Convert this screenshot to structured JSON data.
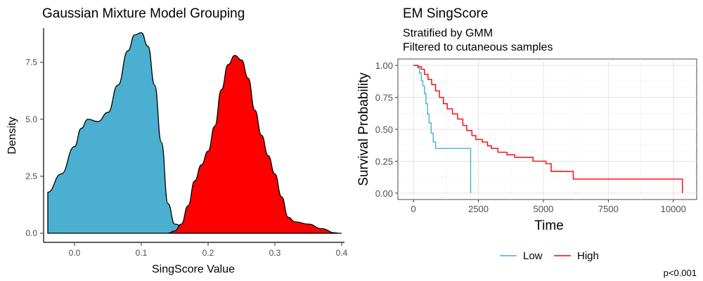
{
  "chart_data": [
    {
      "type": "area",
      "title": "Gaussian Mixture Model Grouping",
      "xlabel": "SingScore Value",
      "ylabel": "Density",
      "xlim": [
        -0.04,
        0.4
      ],
      "ylim": [
        0,
        9
      ],
      "x_ticks": [
        "0.0",
        "0.1",
        "0.2",
        "0.3",
        "0.4"
      ],
      "y_ticks": [
        "0.0",
        "2.5",
        "5.0",
        "7.5"
      ],
      "grid": false,
      "legend": "none",
      "series": [
        {
          "color": "#4BAFD1",
          "points": [
            [
              -0.04,
              1.8
            ],
            [
              -0.02,
              2.6
            ],
            [
              0.0,
              3.8
            ],
            [
              0.01,
              4.6
            ],
            [
              0.02,
              5.0
            ],
            [
              0.035,
              4.9
            ],
            [
              0.05,
              5.3
            ],
            [
              0.065,
              6.5
            ],
            [
              0.08,
              8.0
            ],
            [
              0.09,
              8.7
            ],
            [
              0.1,
              8.8
            ],
            [
              0.11,
              8.2
            ],
            [
              0.12,
              6.5
            ],
            [
              0.13,
              4.0
            ],
            [
              0.14,
              1.3
            ],
            [
              0.15,
              0.4
            ],
            [
              0.17,
              0.1
            ],
            [
              0.2,
              0.0
            ],
            [
              0.4,
              0.0
            ]
          ]
        },
        {
          "color": "#FF0000",
          "points": [
            [
              0.14,
              0.0
            ],
            [
              0.15,
              0.1
            ],
            [
              0.16,
              0.4
            ],
            [
              0.17,
              1.2
            ],
            [
              0.18,
              2.3
            ],
            [
              0.19,
              3.0
            ],
            [
              0.2,
              3.6
            ],
            [
              0.21,
              4.7
            ],
            [
              0.22,
              6.3
            ],
            [
              0.23,
              7.4
            ],
            [
              0.24,
              7.8
            ],
            [
              0.25,
              7.6
            ],
            [
              0.26,
              6.8
            ],
            [
              0.27,
              5.4
            ],
            [
              0.28,
              4.3
            ],
            [
              0.29,
              3.4
            ],
            [
              0.3,
              2.6
            ],
            [
              0.31,
              1.6
            ],
            [
              0.32,
              0.7
            ],
            [
              0.33,
              0.5
            ],
            [
              0.35,
              0.4
            ],
            [
              0.37,
              0.2
            ],
            [
              0.39,
              0.02
            ],
            [
              0.395,
              0.0
            ]
          ]
        }
      ]
    },
    {
      "type": "line",
      "title": "EM SingScore",
      "subtitle_lines": [
        "Stratified by GMM",
        "Filtered to cutaneous samples"
      ],
      "xlabel": "Time",
      "ylabel": "Survival Probability",
      "xlim": [
        -600,
        10900
      ],
      "ylim": [
        -0.05,
        1.05
      ],
      "x_ticks": [
        "0",
        "2500",
        "5000",
        "7500",
        "10000"
      ],
      "y_ticks": [
        "0.00",
        "0.25",
        "0.50",
        "0.75",
        "1.00"
      ],
      "grid": true,
      "legend": "bottom",
      "legend_entries": [
        "Low",
        "High"
      ],
      "annotation": "p<0.001",
      "series": [
        {
          "name": "Low",
          "color": "#4BAFD1",
          "step_points": [
            [
              0,
              1.0
            ],
            [
              160,
              0.98
            ],
            [
              230,
              0.94
            ],
            [
              300,
              0.88
            ],
            [
              360,
              0.84
            ],
            [
              420,
              0.78
            ],
            [
              480,
              0.7
            ],
            [
              540,
              0.62
            ],
            [
              600,
              0.55
            ],
            [
              680,
              0.47
            ],
            [
              760,
              0.4
            ],
            [
              850,
              0.35
            ],
            [
              2200,
              0.35
            ],
            [
              2200,
              0.0
            ]
          ]
        },
        {
          "name": "High",
          "color": "#FF0000",
          "step_points": [
            [
              0,
              1.0
            ],
            [
              180,
              0.99
            ],
            [
              300,
              0.97
            ],
            [
              420,
              0.93
            ],
            [
              560,
              0.89
            ],
            [
              700,
              0.85
            ],
            [
              850,
              0.8
            ],
            [
              1000,
              0.75
            ],
            [
              1150,
              0.7
            ],
            [
              1300,
              0.66
            ],
            [
              1500,
              0.62
            ],
            [
              1700,
              0.58
            ],
            [
              1900,
              0.53
            ],
            [
              2050,
              0.49
            ],
            [
              2250,
              0.45
            ],
            [
              2400,
              0.42
            ],
            [
              2650,
              0.4
            ],
            [
              2850,
              0.37
            ],
            [
              3000,
              0.35
            ],
            [
              3250,
              0.32
            ],
            [
              3600,
              0.3
            ],
            [
              3900,
              0.28
            ],
            [
              4600,
              0.25
            ],
            [
              5100,
              0.23
            ],
            [
              5300,
              0.17
            ],
            [
              6150,
              0.11
            ],
            [
              10350,
              0.11
            ],
            [
              10350,
              0.0
            ]
          ]
        }
      ]
    }
  ]
}
